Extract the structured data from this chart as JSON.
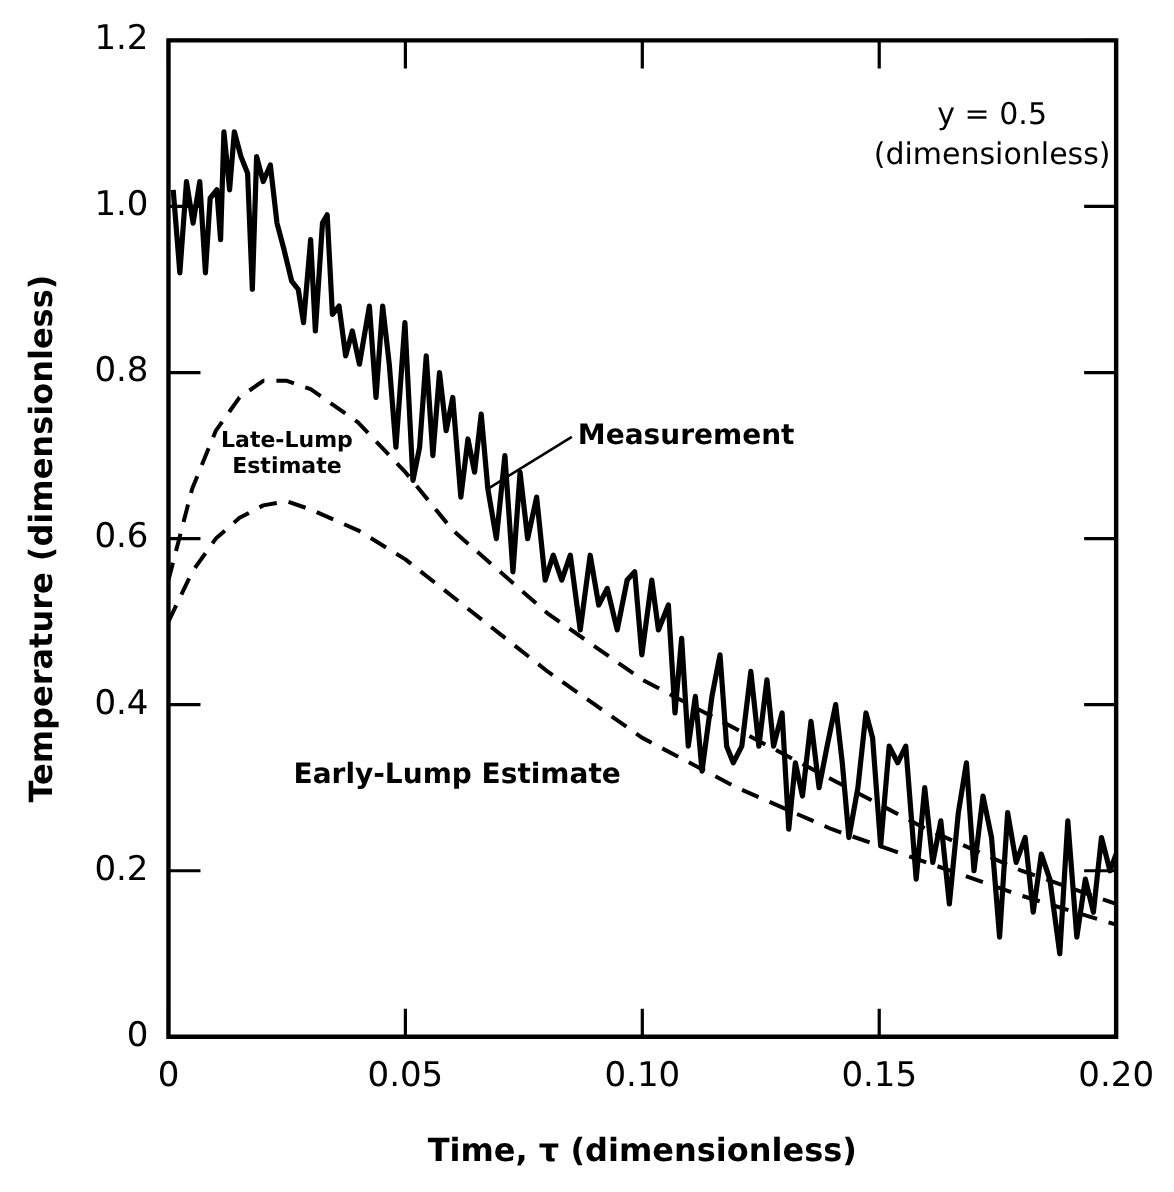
{
  "chart_data": {
    "type": "line",
    "xlabel": "Time, τ (dimensionless)",
    "ylabel": "Temperature (dimensionless)",
    "xlim": [
      0,
      0.2
    ],
    "xticks": [
      0,
      0.05,
      {
        "value": 0.1,
        "label": "0.10"
      },
      0.15,
      {
        "value": 0.2,
        "label": "0.20"
      }
    ],
    "ylim": [
      0,
      1.2
    ],
    "yticks": [
      0,
      0.2,
      0.4,
      0.6,
      0.8,
      {
        "value": 1,
        "label": "1.0"
      },
      1.2
    ],
    "grid": false,
    "legend": false,
    "marker": "none",
    "annotations": [
      "y = 0.5",
      "(dimensionless)"
    ],
    "series": [
      {
        "name": "Measurement",
        "color": "#000000",
        "line_style": "solid",
        "x": [
          0.001,
          0.0024,
          0.0038,
          0.0052,
          0.0066,
          0.0078,
          0.0088,
          0.0102,
          0.011,
          0.0117,
          0.0129,
          0.0139,
          0.0153,
          0.0167,
          0.0177,
          0.0186,
          0.02,
          0.0215,
          0.0229,
          0.0243,
          0.026,
          0.0274,
          0.0285,
          0.03,
          0.031,
          0.0325,
          0.0335,
          0.0346,
          0.036,
          0.0374,
          0.0388,
          0.0403,
          0.0424,
          0.0438,
          0.0452,
          0.0466,
          0.048,
          0.0499,
          0.0516,
          0.053,
          0.0544,
          0.0558,
          0.0572,
          0.0586,
          0.06,
          0.0617,
          0.0632,
          0.0646,
          0.066,
          0.0674,
          0.0692,
          0.071,
          0.0727,
          0.0742,
          0.0758,
          0.0777,
          0.0795,
          0.0812,
          0.083,
          0.0848,
          0.0869,
          0.089,
          0.0908,
          0.0926,
          0.0947,
          0.0968,
          0.0984,
          0.0999,
          0.102,
          0.1034,
          0.1055,
          0.1069,
          0.1083,
          0.1097,
          0.1112,
          0.1126,
          0.1147,
          0.1164,
          0.1178,
          0.1192,
          0.121,
          0.1229,
          0.1246,
          0.1263,
          0.1277,
          0.1295,
          0.1309,
          0.1323,
          0.1338,
          0.1356,
          0.1373,
          0.139,
          0.1408,
          0.1422,
          0.1436,
          0.1455,
          0.1472,
          0.1486,
          0.1503,
          0.1521,
          0.1539,
          0.1556,
          0.1578,
          0.1596,
          0.1613,
          0.163,
          0.1648,
          0.1667,
          0.1684,
          0.17,
          0.1719,
          0.1737,
          0.1754,
          0.1771,
          0.1789,
          0.1808,
          0.1825,
          0.1842,
          0.186,
          0.1881,
          0.1898,
          0.1917,
          0.1935,
          0.1952,
          0.1969,
          0.1987,
          0.2
        ],
        "values": [
          1.02,
          0.92,
          1.03,
          0.98,
          1.03,
          0.92,
          1.01,
          1.02,
          0.96,
          1.09,
          1.02,
          1.09,
          1.06,
          1.04,
          0.9,
          1.06,
          1.03,
          1.05,
          0.98,
          0.95,
          0.91,
          0.9,
          0.86,
          0.96,
          0.85,
          0.98,
          0.99,
          0.87,
          0.88,
          0.82,
          0.85,
          0.81,
          0.88,
          0.77,
          0.88,
          0.81,
          0.71,
          0.86,
          0.67,
          0.71,
          0.82,
          0.7,
          0.8,
          0.73,
          0.77,
          0.65,
          0.72,
          0.68,
          0.75,
          0.66,
          0.6,
          0.7,
          0.56,
          0.68,
          0.6,
          0.65,
          0.55,
          0.58,
          0.55,
          0.58,
          0.49,
          0.58,
          0.52,
          0.54,
          0.49,
          0.55,
          0.56,
          0.46,
          0.55,
          0.49,
          0.52,
          0.39,
          0.48,
          0.35,
          0.41,
          0.32,
          0.41,
          0.46,
          0.35,
          0.33,
          0.35,
          0.44,
          0.35,
          0.43,
          0.35,
          0.39,
          0.25,
          0.33,
          0.29,
          0.38,
          0.3,
          0.35,
          0.4,
          0.33,
          0.24,
          0.3,
          0.39,
          0.36,
          0.23,
          0.35,
          0.33,
          0.35,
          0.19,
          0.3,
          0.21,
          0.26,
          0.16,
          0.27,
          0.33,
          0.2,
          0.29,
          0.24,
          0.12,
          0.27,
          0.21,
          0.24,
          0.15,
          0.22,
          0.19,
          0.1,
          0.26,
          0.12,
          0.19,
          0.15,
          0.24,
          0.2,
          0.22
        ]
      },
      {
        "name": "Late-Lump Estimate",
        "color": "#000000",
        "line_style": "dashed",
        "x": [
          0,
          0.005,
          0.01,
          0.015,
          0.02,
          0.025,
          0.03,
          0.04,
          0.05,
          0.06,
          0.07,
          0.08,
          0.09,
          0.1,
          0.12,
          0.14,
          0.16,
          0.18,
          0.2
        ],
        "values": [
          0.55,
          0.66,
          0.73,
          0.77,
          0.79,
          0.79,
          0.78,
          0.74,
          0.68,
          0.61,
          0.56,
          0.51,
          0.47,
          0.43,
          0.37,
          0.31,
          0.25,
          0.2,
          0.16
        ]
      },
      {
        "name": "Early-Lump Estimate",
        "color": "#000000",
        "line_style": "dashed",
        "x": [
          0,
          0.005,
          0.01,
          0.015,
          0.02,
          0.025,
          0.03,
          0.04,
          0.05,
          0.06,
          0.07,
          0.08,
          0.09,
          0.1,
          0.12,
          0.14,
          0.16,
          0.18,
          0.2
        ],
        "values": [
          0.5,
          0.56,
          0.6,
          0.625,
          0.64,
          0.645,
          0.635,
          0.61,
          0.575,
          0.53,
          0.485,
          0.44,
          0.4,
          0.36,
          0.3,
          0.25,
          0.21,
          0.17,
          0.135
        ]
      }
    ]
  }
}
